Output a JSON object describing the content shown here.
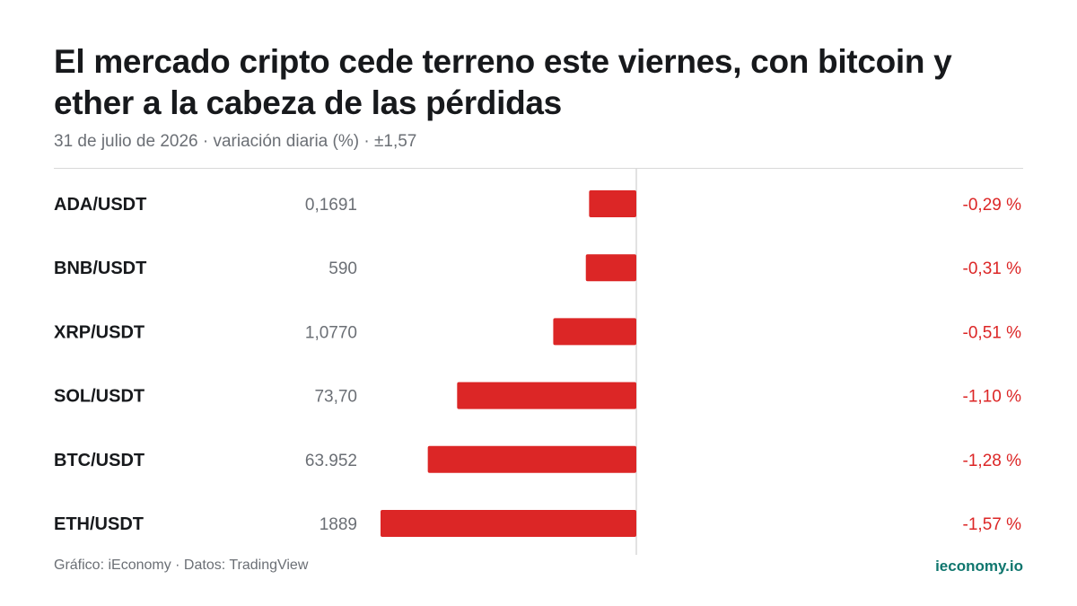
{
  "header": {
    "title": "El mercado cripto cede terreno este viernes, con bitcoin y ether a la cabeza de las pérdidas",
    "subtitle": "31 de julio de 2026 · variación diaria (%) · ±1,57"
  },
  "footer": {
    "source": "Gráfico: iEconomy · Datos: TradingView",
    "brand": "ieconomy.io"
  },
  "colors": {
    "negative": "#dc2626",
    "brand": "#0f766e",
    "price": "#6b6f75",
    "label": "#17191c",
    "axis": "#d9d9d9"
  },
  "chart_data": {
    "type": "bar",
    "orientation": "horizontal",
    "categories": [
      "ADA/USDT",
      "BNB/USDT",
      "XRP/USDT",
      "SOL/USDT",
      "BTC/USDT",
      "ETH/USDT"
    ],
    "prices": [
      "0,1691",
      "590",
      "1,0770",
      "73,70",
      "63.952",
      "1889"
    ],
    "values": [
      -0.29,
      -0.31,
      -0.51,
      -1.1,
      -1.28,
      -1.57
    ],
    "value_labels": [
      "-0,29 %",
      "-0,31 %",
      "-0,51 %",
      "-1,10 %",
      "-1,28 %",
      "-1,57 %"
    ],
    "xlim": [
      -1.57,
      1.57
    ],
    "grid": false,
    "legend": "none"
  }
}
